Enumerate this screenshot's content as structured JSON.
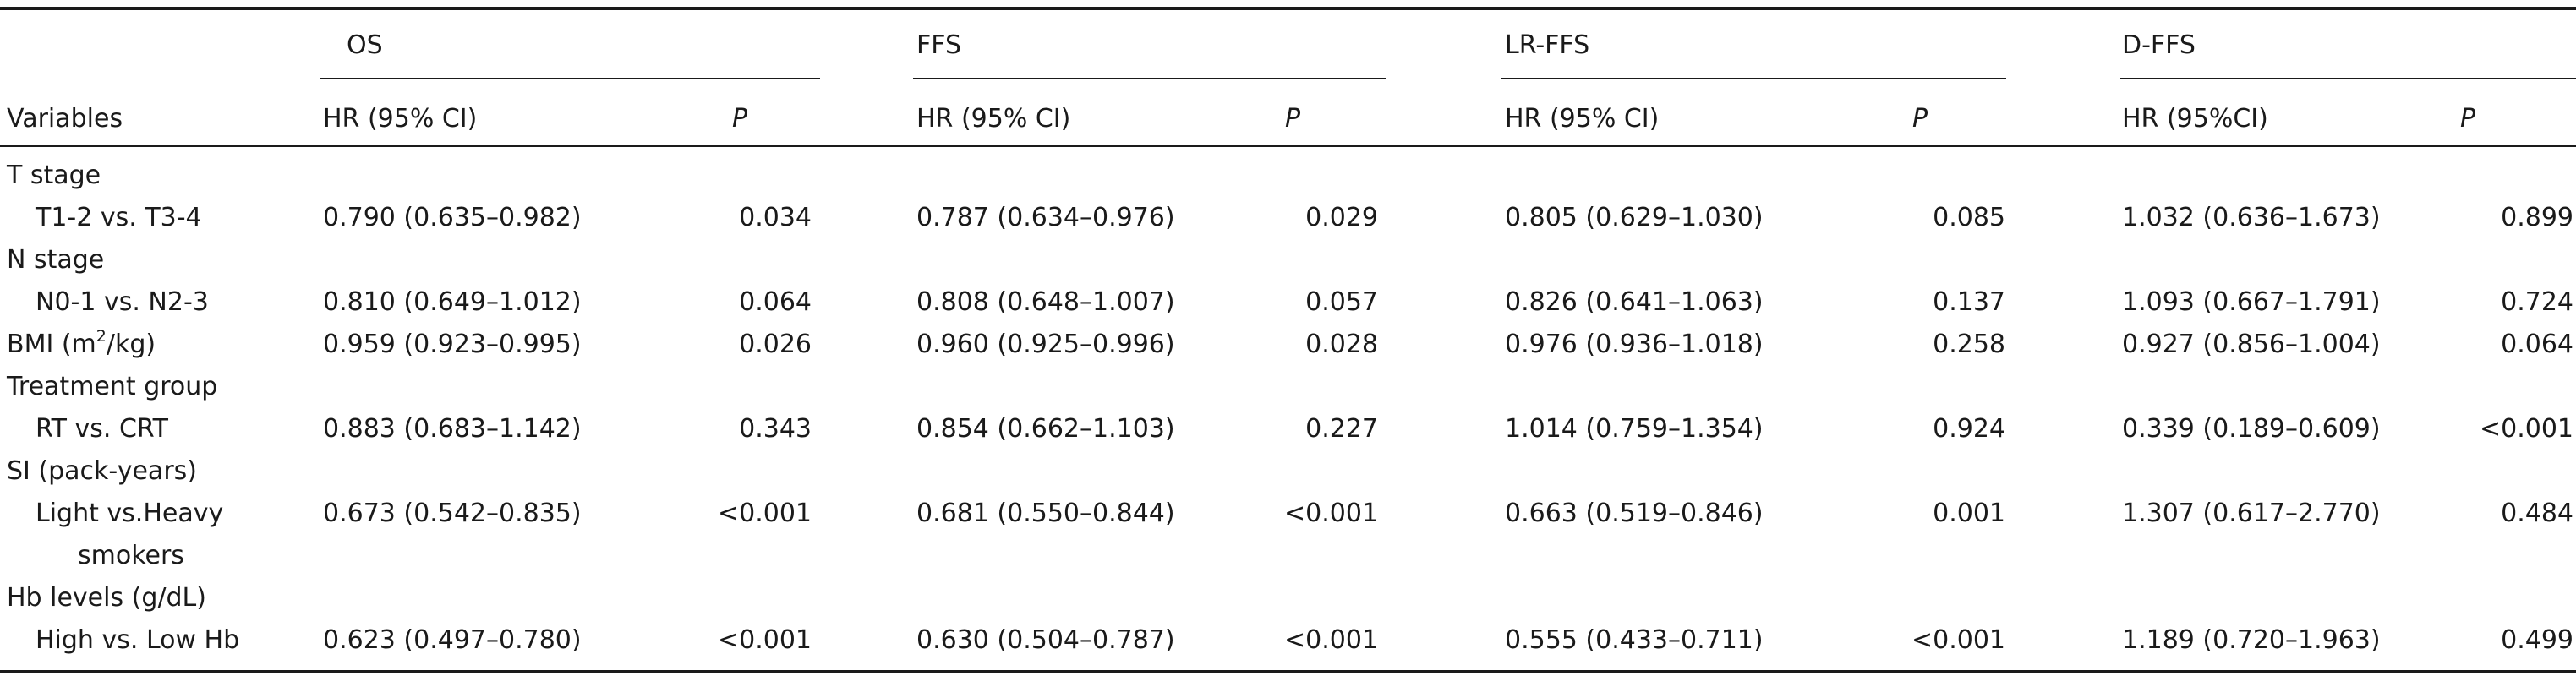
{
  "table": {
    "groups": [
      {
        "label": "OS"
      },
      {
        "label": "FFS"
      },
      {
        "label": "LR-FFS"
      },
      {
        "label": "D-FFS"
      }
    ],
    "variables_header": "Variables",
    "hr_headers": [
      "HR (95% CI)",
      "HR (95% CI)",
      "HR (95% CI)",
      "HR (95%CI)"
    ],
    "p_header": "P",
    "rows": [
      {
        "kind": "category",
        "label": "T stage"
      },
      {
        "kind": "data",
        "label": "T1-2 vs. T3-4",
        "values": [
          "0.790 (0.635–0.982)",
          "0.034",
          "0.787 (0.634–0.976)",
          "0.029",
          "0.805 (0.629–1.030)",
          "0.085",
          "1.032 (0.636–1.673)",
          "0.899"
        ]
      },
      {
        "kind": "category",
        "label": "N stage"
      },
      {
        "kind": "data",
        "label": "N0-1 vs. N2-3",
        "values": [
          "0.810 (0.649–1.012)",
          "0.064",
          "0.808 (0.648–1.007)",
          "0.057",
          "0.826 (0.641–1.063)",
          "0.137",
          "1.093 (0.667–1.791)",
          "0.724"
        ]
      },
      {
        "kind": "bmi",
        "label_pre": "BMI (m",
        "label_sup": "2",
        "label_post": "/kg)",
        "values": [
          "0.959 (0.923–0.995)",
          "0.026",
          "0.960 (0.925–0.996)",
          "0.028",
          "0.976 (0.936–1.018)",
          "0.258",
          "0.927 (0.856–1.004)",
          "0.064"
        ]
      },
      {
        "kind": "category",
        "label": "Treatment group"
      },
      {
        "kind": "data",
        "label": "RT vs. CRT",
        "values": [
          "0.883 (0.683–1.142)",
          "0.343",
          "0.854 (0.662–1.103)",
          "0.227",
          "1.014 (0.759–1.354)",
          "0.924",
          "0.339 (0.189–0.609)",
          "<0.001"
        ]
      },
      {
        "kind": "category",
        "label": "SI (pack-years)"
      },
      {
        "kind": "data",
        "label": "Light vs.Heavy",
        "values": [
          "0.673 (0.542–0.835)",
          "<0.001",
          "0.681 (0.550–0.844)",
          "<0.001",
          "0.663 (0.519–0.846)",
          "0.001",
          "1.307 (0.617–2.770)",
          "0.484"
        ]
      },
      {
        "kind": "continuation",
        "label": "smokers"
      },
      {
        "kind": "category",
        "label": "Hb levels (g/dL)"
      },
      {
        "kind": "data",
        "label": "High vs. Low Hb",
        "values": [
          "0.623 (0.497–0.780)",
          "<0.001",
          "0.630 (0.504–0.787)",
          "<0.001",
          "0.555 (0.433–0.711)",
          "<0.001",
          "1.189 (0.720–1.963)",
          "0.499"
        ]
      }
    ]
  }
}
